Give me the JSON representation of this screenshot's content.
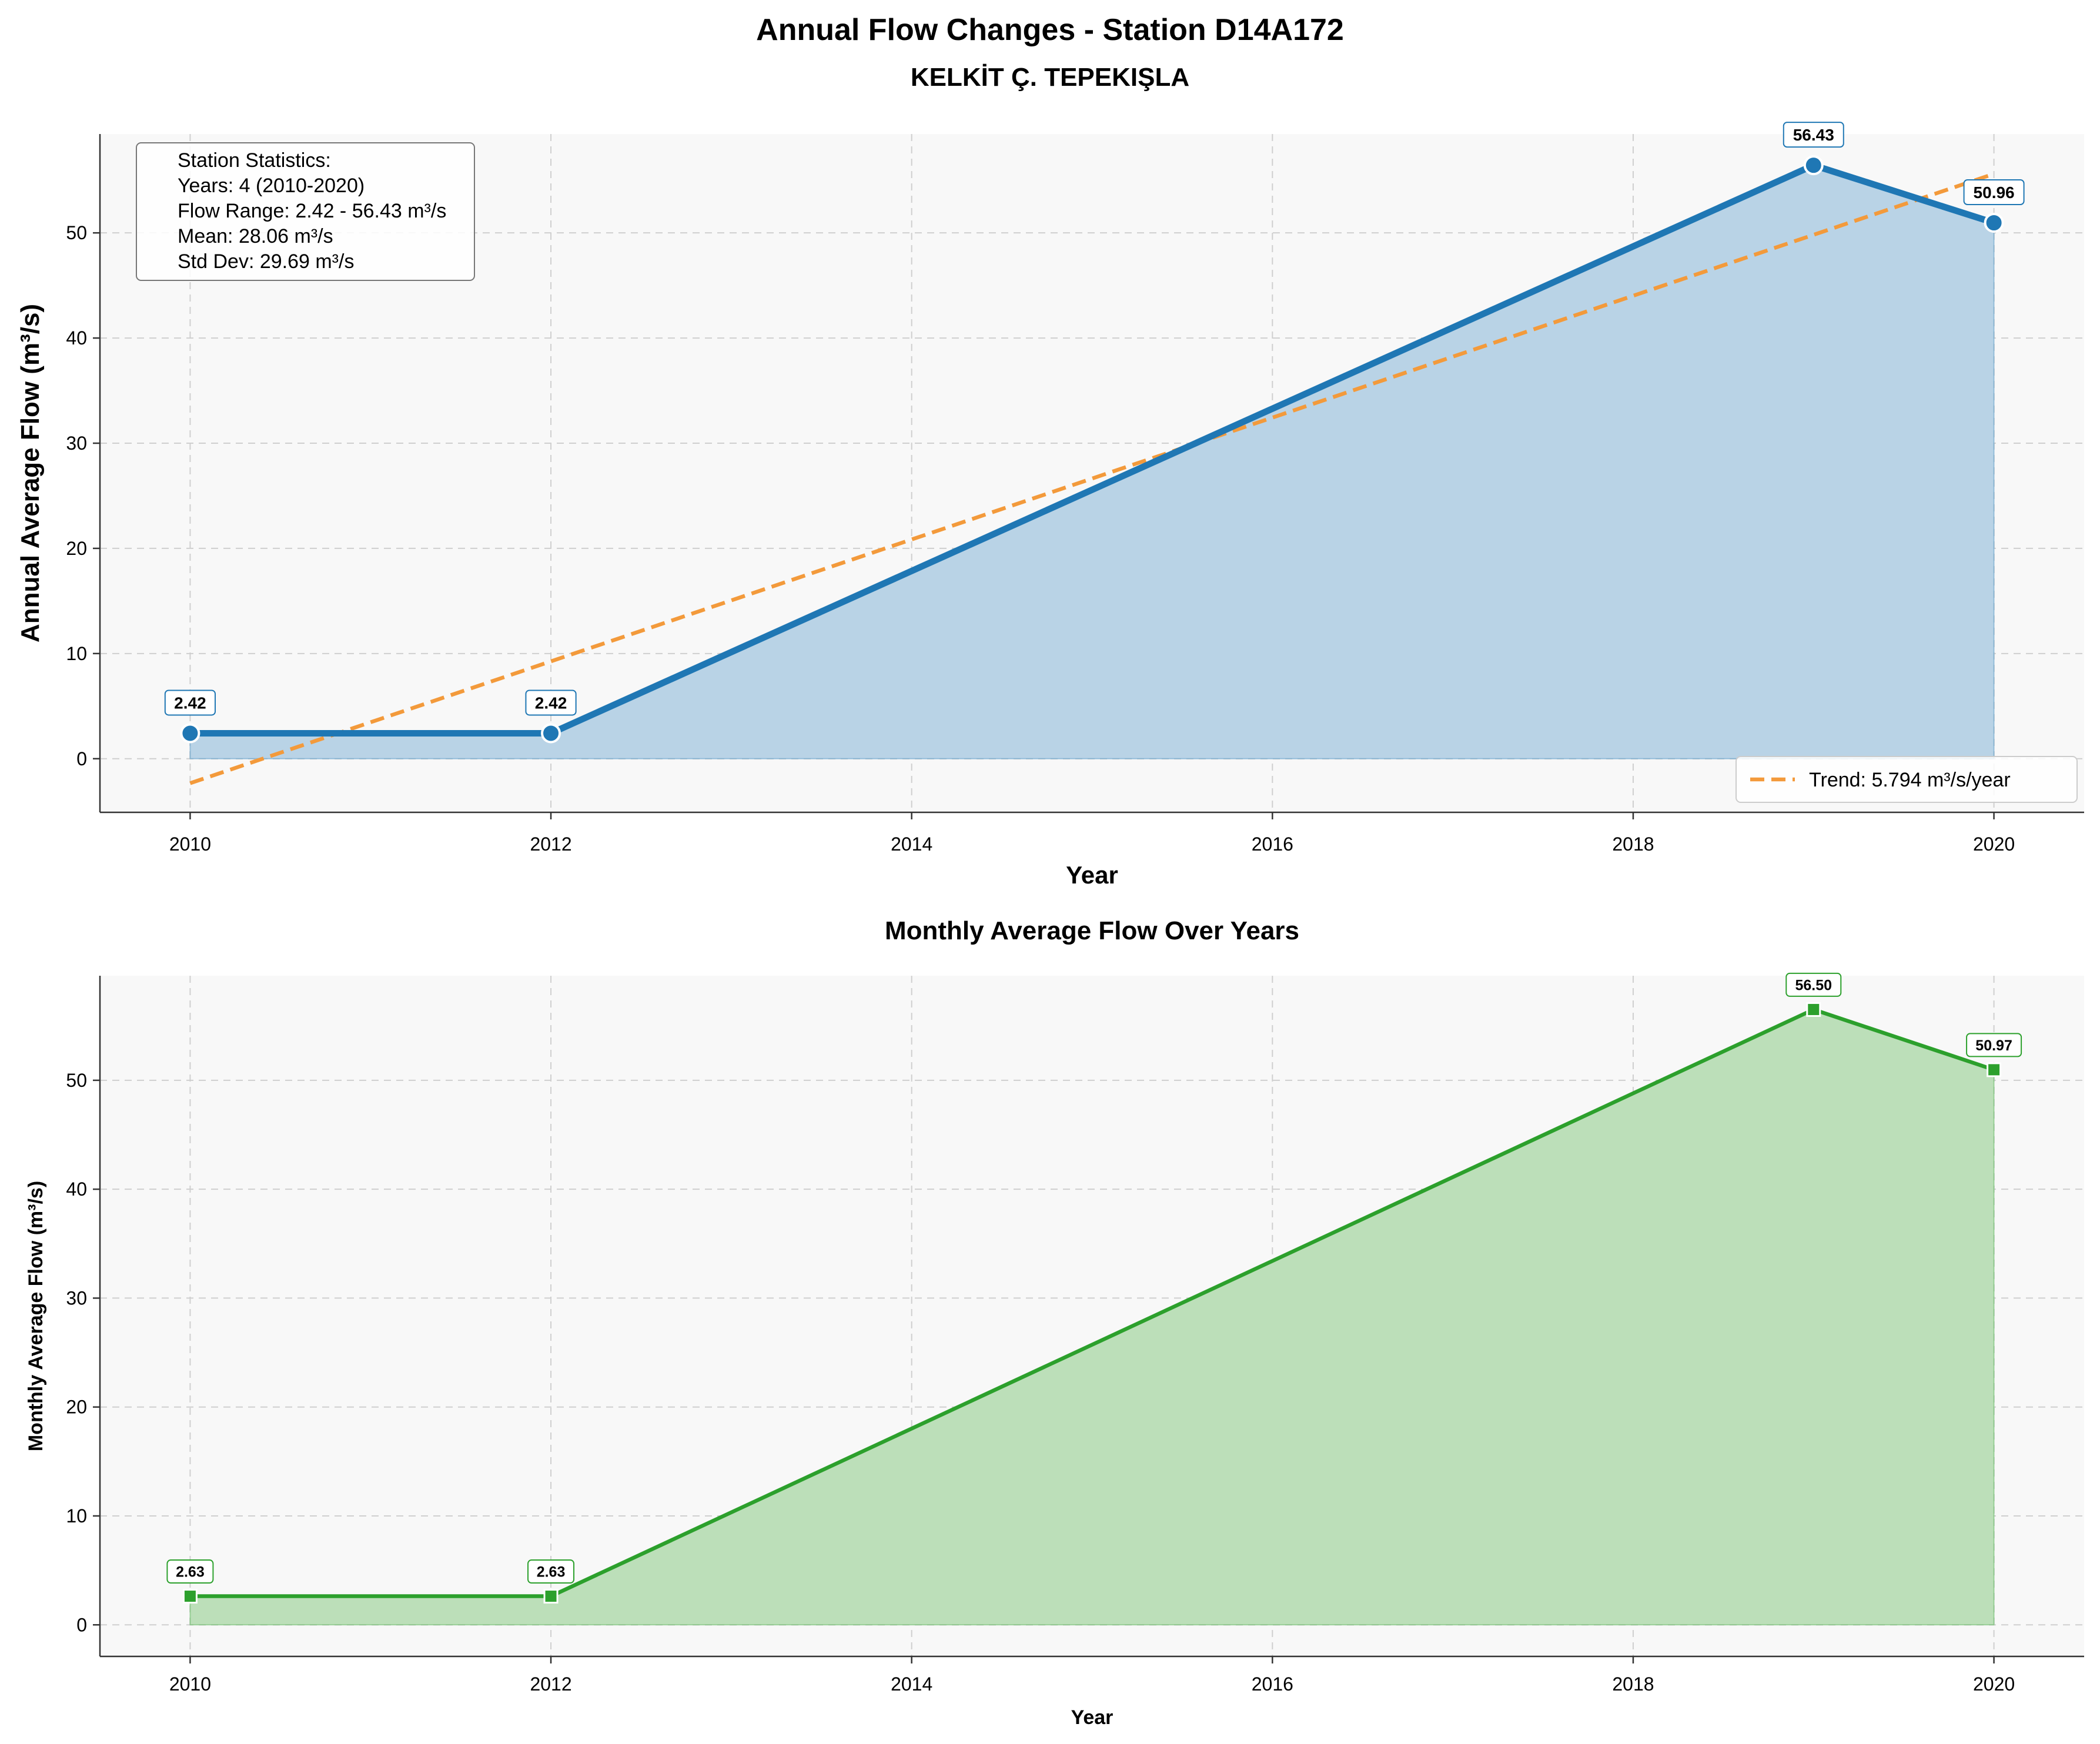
{
  "title": "Annual Flow Changes - Station D14A172",
  "subtitle": "KELKİT Ç. TEPEKIŞLA",
  "colors": {
    "annual": "#1f77b4",
    "annual_fill": "#b9d3e6",
    "trend": "#f39a3b",
    "monthly": "#2ca02c",
    "monthly_fill": "#bcdfb9",
    "panel_bg": "#f8f8f8"
  },
  "chart_data": [
    {
      "type": "area",
      "xlabel": "Year",
      "ylabel": "Annual Average Flow (m³/s)",
      "xlim": [
        2009.5,
        2020.5
      ],
      "ylim": [
        -5.1,
        59.4
      ],
      "x_ticks": [
        2010,
        2012,
        2014,
        2016,
        2018,
        2020
      ],
      "y_ticks": [
        0,
        10,
        20,
        30,
        40,
        50
      ],
      "grid": true,
      "series": [
        {
          "x": [
            2010,
            2012,
            2019,
            2020
          ],
          "values": [
            2.42,
            2.42,
            56.43,
            50.96
          ],
          "data_labels": [
            "2.42",
            "2.42",
            "56.43",
            "50.96"
          ],
          "marker": "circle"
        }
      ],
      "trend": {
        "name": "Trend: 5.794 m³/s/year",
        "x": [
          2010,
          2020
        ],
        "values": [
          -2.33,
          55.61
        ]
      },
      "legend": "lower-right",
      "stats_box": {
        "lines": [
          "Station Statistics:",
          "Years: 4 (2010-2020)",
          "Flow Range: 2.42 - 56.43 m³/s",
          "Mean: 28.06 m³/s",
          "Std Dev: 29.69 m³/s"
        ]
      }
    },
    {
      "type": "area",
      "title": "Monthly Average Flow Over Years",
      "xlabel": "Year",
      "ylabel": "Monthly Average Flow (m³/s)",
      "xlim": [
        2009.5,
        2020.5
      ],
      "ylim": [
        -2.9,
        59.6
      ],
      "x_ticks": [
        2010,
        2012,
        2014,
        2016,
        2018,
        2020
      ],
      "y_ticks": [
        0,
        10,
        20,
        30,
        40,
        50
      ],
      "grid": true,
      "series": [
        {
          "x": [
            2010,
            2012,
            2019,
            2020
          ],
          "values": [
            2.63,
            2.63,
            56.5,
            50.97
          ],
          "data_labels": [
            "2.63",
            "2.63",
            "56.50",
            "50.97"
          ],
          "marker": "square"
        }
      ]
    }
  ]
}
